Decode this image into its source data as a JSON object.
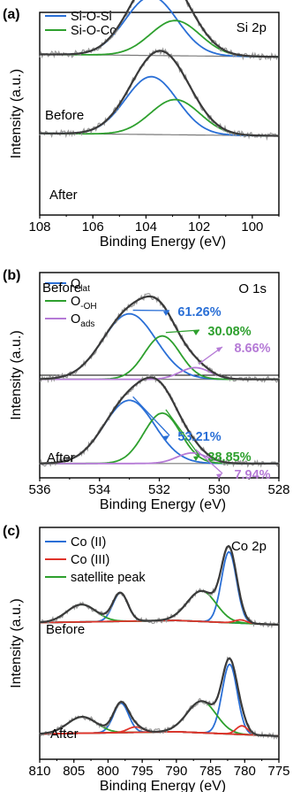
{
  "colors": {
    "envelope": "#3a3a3a",
    "raw": "#9a9a9a",
    "baseline": "#7a7a7a",
    "blue": "#2a6fd6",
    "green": "#2ea02e",
    "purple": "#b57ad6",
    "red": "#e0332a",
    "axis": "#000000"
  },
  "chart_data": [
    {
      "type": "line",
      "panel_label": "(a)",
      "corner_label": "Si 2p",
      "xlabel": "Binding Energy (eV)",
      "ylabel": "Intensity (a.u.)",
      "xlim": [
        108,
        99
      ],
      "xticks": [
        108,
        106,
        104,
        102,
        100
      ],
      "yticks": "none",
      "legend_position": "top-left",
      "legend": [
        {
          "name": "Si-O-Si",
          "color": "blue"
        },
        {
          "name": "Si-O-Co",
          "color": "green"
        }
      ],
      "grid": false,
      "stacks": [
        {
          "label": "Before",
          "baseline": [
            [
              108,
              0.005
            ],
            [
              99,
              -0.015
            ]
          ],
          "components": [
            {
              "series": "Si-O-Si",
              "color": "blue",
              "center": 103.8,
              "height": 0.47,
              "fwhm": 2.3
            },
            {
              "series": "Si-O-Co",
              "color": "green",
              "center": 102.9,
              "height": 0.28,
              "fwhm": 2.2
            }
          ],
          "envelope": true,
          "raw_data": true
        },
        {
          "label": "After",
          "baseline": [
            [
              108,
              0.005
            ],
            [
              99,
              -0.015
            ]
          ],
          "components": [
            {
              "series": "Si-O-Si",
              "color": "blue",
              "center": 103.8,
              "height": 0.46,
              "fwhm": 2.3
            },
            {
              "series": "Si-O-Co",
              "color": "green",
              "center": 102.9,
              "height": 0.28,
              "fwhm": 2.2
            }
          ],
          "envelope": true,
          "raw_data": true
        }
      ]
    },
    {
      "type": "line",
      "panel_label": "(b)",
      "corner_label": "O 1s",
      "xlabel": "Binding Energy (eV)",
      "ylabel": "Intensity (a.u.)",
      "xlim": [
        536,
        528
      ],
      "xticks": [
        536,
        534,
        532,
        530,
        528
      ],
      "yticks": "none",
      "legend_position": "top-left",
      "legend": [
        {
          "name": "O",
          "sub": "lat",
          "color": "blue"
        },
        {
          "name": "O",
          "sub": "-OH",
          "color": "green"
        },
        {
          "name": "O",
          "sub": "ads",
          "color": "purple"
        }
      ],
      "grid": false,
      "stacks": [
        {
          "label": "Before",
          "baseline": [
            [
              536,
              0.0
            ],
            [
              528,
              0.0
            ]
          ],
          "components": [
            {
              "series": "O_lat",
              "color": "blue",
              "center": 533.0,
              "height": 0.56,
              "fwhm": 2.1,
              "label": "61.26%"
            },
            {
              "series": "O_-OH",
              "color": "green",
              "center": 531.9,
              "height": 0.37,
              "fwhm": 1.4,
              "label": "30.08%"
            },
            {
              "series": "O_ads",
              "color": "purple",
              "center": 530.8,
              "height": 0.1,
              "fwhm": 1.2,
              "label": "8.66%"
            }
          ],
          "envelope": true,
          "raw_data": true
        },
        {
          "label": "After",
          "baseline": [
            [
              536,
              0.0
            ],
            [
              528,
              0.0
            ]
          ],
          "components": [
            {
              "series": "O_lat",
              "color": "blue",
              "center": 533.0,
              "height": 0.54,
              "fwhm": 2.0,
              "label": "53.21%"
            },
            {
              "series": "O_-OH",
              "color": "green",
              "center": 531.9,
              "height": 0.43,
              "fwhm": 1.45,
              "label": "38.85%"
            },
            {
              "series": "O_ads",
              "color": "purple",
              "center": 530.9,
              "height": 0.09,
              "fwhm": 1.2,
              "label": "7.94%"
            }
          ],
          "envelope": true,
          "raw_data": true
        }
      ]
    },
    {
      "type": "line",
      "panel_label": "(c)",
      "corner_label": "Co 2p",
      "xlabel": "Binding Energy (eV)",
      "ylabel": "Intensity (a.u.)",
      "xlim": [
        810,
        775
      ],
      "xticks": [
        810,
        805,
        800,
        795,
        790,
        785,
        780,
        775
      ],
      "yticks": "none",
      "legend_position": "top-left",
      "legend": [
        {
          "name": "Co (II)",
          "color": "blue"
        },
        {
          "name": "Co (III)",
          "color": "red"
        },
        {
          "name": "satellite peak",
          "color": "green"
        }
      ],
      "grid": false,
      "stacks": [
        {
          "label": "Before",
          "baseline": [
            [
              810,
              0.02
            ],
            [
              790,
              0.04
            ],
            [
              775,
              0.0
            ]
          ],
          "components": [
            {
              "series": "Co (II)",
              "color": "blue",
              "center": 782.3,
              "height": 0.65,
              "fwhm": 2.6
            },
            {
              "series": "Co (II)",
              "color": "blue",
              "center": 798.2,
              "height": 0.26,
              "fwhm": 2.6
            },
            {
              "series": "satellite peak",
              "color": "green",
              "center": 786.3,
              "height": 0.28,
              "fwhm": 5.0
            },
            {
              "series": "satellite peak",
              "color": "green",
              "center": 803.9,
              "height": 0.16,
              "fwhm": 5.0
            },
            {
              "series": "Co (III)",
              "color": "red",
              "center": 780.6,
              "height": 0.03,
              "fwhm": 2.0
            }
          ],
          "envelope": true,
          "raw_data": true
        },
        {
          "label": "After",
          "baseline": [
            [
              810,
              0.02
            ],
            [
              790,
              0.04
            ],
            [
              775,
              0.0
            ]
          ],
          "components": [
            {
              "series": "Co (II)",
              "color": "blue",
              "center": 782.2,
              "height": 0.64,
              "fwhm": 2.6
            },
            {
              "series": "Co (II)",
              "color": "blue",
              "center": 798.1,
              "height": 0.27,
              "fwhm": 2.6
            },
            {
              "series": "satellite peak",
              "color": "green",
              "center": 786.3,
              "height": 0.29,
              "fwhm": 5.0
            },
            {
              "series": "satellite peak",
              "color": "green",
              "center": 803.8,
              "height": 0.15,
              "fwhm": 5.0
            },
            {
              "series": "Co (III)",
              "color": "red",
              "center": 780.4,
              "height": 0.08,
              "fwhm": 2.0
            },
            {
              "series": "Co (III)",
              "color": "red",
              "center": 796.0,
              "height": 0.05,
              "fwhm": 2.6
            }
          ],
          "envelope": true,
          "raw_data": true
        }
      ]
    }
  ]
}
